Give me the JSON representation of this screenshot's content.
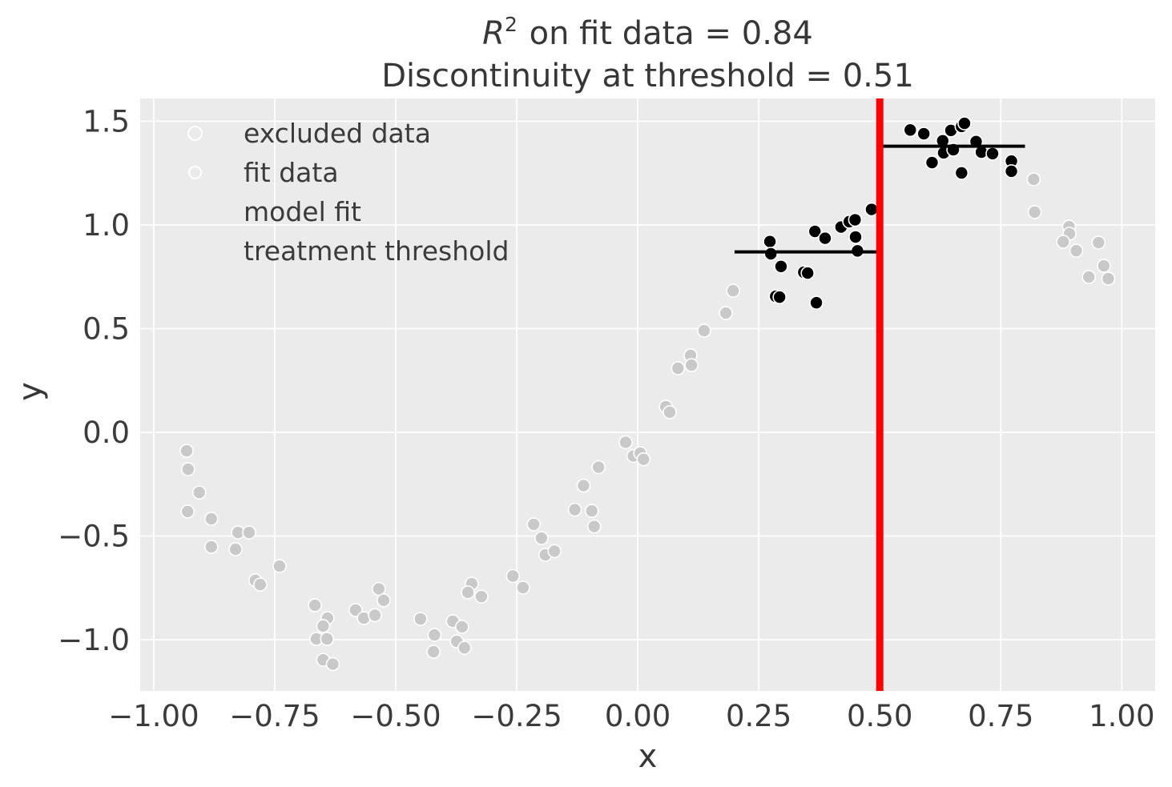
{
  "figure": {
    "title_line1": {
      "r2_base": "R",
      "r2_exp": "2",
      "rest": " on fit data = 0.84"
    },
    "title_line2": "Discontinuity at threshold = 0.51",
    "xlabel": "x",
    "ylabel": "y"
  },
  "legend": {
    "position": "upper left",
    "items": [
      {
        "label": "excluded data",
        "marker": "circle",
        "color": "#C9C9C9"
      },
      {
        "label": "fit data",
        "marker": "circle",
        "color": "#000000"
      },
      {
        "label": "model fit",
        "marker": "line",
        "color": "#000000"
      },
      {
        "label": "treatment threshold",
        "marker": "line",
        "color": "#FF0000"
      }
    ]
  },
  "chart_data": {
    "type": "scatter",
    "title": "R^2 on fit data = 0.84\nDiscontinuity at threshold = 0.51",
    "r_squared_on_fit_data": 0.84,
    "discontinuity_at_threshold": 0.51,
    "threshold_x": 0.5,
    "xlabel": "x",
    "ylabel": "y",
    "xlim": [
      -1.028,
      1.069
    ],
    "ylim": [
      -1.247,
      1.61
    ],
    "x_ticks": [
      -1.0,
      -0.75,
      -0.5,
      -0.25,
      0.0,
      0.25,
      0.5,
      0.75,
      1.0
    ],
    "x_tick_labels": [
      "−1.00",
      "−0.75",
      "−0.50",
      "−0.25",
      "0.00",
      "0.25",
      "0.50",
      "0.75",
      "1.00"
    ],
    "y_ticks": [
      1.5,
      1.0,
      0.5,
      0.0,
      -0.5,
      -1.0
    ],
    "y_tick_labels": [
      "1.5",
      "1.0",
      "0.5",
      "0.0",
      "−0.5",
      "−1.0"
    ],
    "grid": true,
    "colors": {
      "plot_background": "#EBEBEB",
      "gridline": "#FFFFFF",
      "excluded": "#C9C9C9",
      "fit": "#000000",
      "model_fit": "#000000",
      "threshold": "#FF0000",
      "text": "#3B3B3B",
      "marker_edge": "#FFFFFF"
    },
    "series": [
      {
        "name": "excluded data",
        "color": "#C9C9C9",
        "points": [
          [
            -0.932,
            -0.089
          ],
          [
            -0.929,
            -0.178
          ],
          [
            -0.906,
            -0.29
          ],
          [
            -0.93,
            -0.382
          ],
          [
            -0.881,
            -0.417
          ],
          [
            -0.826,
            -0.483
          ],
          [
            -0.803,
            -0.483
          ],
          [
            -0.881,
            -0.552
          ],
          [
            -0.831,
            -0.564
          ],
          [
            -0.74,
            -0.645
          ],
          [
            -0.79,
            -0.714
          ],
          [
            -0.78,
            -0.734
          ],
          [
            -0.667,
            -0.834
          ],
          [
            -0.641,
            -0.896
          ],
          [
            -0.65,
            -0.934
          ],
          [
            -0.664,
            -0.996
          ],
          [
            -0.642,
            -0.996
          ],
          [
            -0.65,
            -1.097
          ],
          [
            -0.63,
            -1.118
          ],
          [
            -0.583,
            -0.857
          ],
          [
            -0.566,
            -0.896
          ],
          [
            -0.543,
            -0.882
          ],
          [
            -0.535,
            -0.755
          ],
          [
            -0.525,
            -0.81
          ],
          [
            -0.449,
            -0.9
          ],
          [
            -0.42,
            -0.977
          ],
          [
            -0.422,
            -1.058
          ],
          [
            -0.382,
            -0.911
          ],
          [
            -0.363,
            -0.938
          ],
          [
            -0.374,
            -1.008
          ],
          [
            -0.358,
            -1.039
          ],
          [
            -0.343,
            -0.73
          ],
          [
            -0.351,
            -0.772
          ],
          [
            -0.323,
            -0.792
          ],
          [
            -0.258,
            -0.693
          ],
          [
            -0.237,
            -0.749
          ],
          [
            -0.215,
            -0.444
          ],
          [
            -0.199,
            -0.51
          ],
          [
            -0.191,
            -0.591
          ],
          [
            -0.172,
            -0.573
          ],
          [
            -0.13,
            -0.373
          ],
          [
            -0.112,
            -0.257
          ],
          [
            -0.095,
            -0.379
          ],
          [
            -0.09,
            -0.454
          ],
          [
            -0.081,
            -0.168
          ],
          [
            -0.025,
            -0.048
          ],
          [
            -0.009,
            -0.114
          ],
          [
            0.005,
            -0.1
          ],
          [
            0.012,
            -0.13
          ],
          [
            0.058,
            0.124
          ],
          [
            0.066,
            0.097
          ],
          [
            0.083,
            0.309
          ],
          [
            0.109,
            0.371
          ],
          [
            0.111,
            0.324
          ],
          [
            0.137,
            0.49
          ],
          [
            0.182,
            0.575
          ],
          [
            0.197,
            0.683
          ],
          [
            0.818,
            1.22
          ],
          [
            0.82,
            1.062
          ],
          [
            0.891,
            0.992
          ],
          [
            0.892,
            0.958
          ],
          [
            0.879,
            0.919
          ],
          [
            0.906,
            0.876
          ],
          [
            0.952,
            0.915
          ],
          [
            0.963,
            0.803
          ],
          [
            0.932,
            0.749
          ],
          [
            0.972,
            0.741
          ]
        ]
      },
      {
        "name": "fit data",
        "color": "#000000",
        "points": [
          [
            0.273,
            0.92
          ],
          [
            0.275,
            0.861
          ],
          [
            0.296,
            0.8
          ],
          [
            0.285,
            0.656
          ],
          [
            0.293,
            0.652
          ],
          [
            0.343,
            0.772
          ],
          [
            0.351,
            0.768
          ],
          [
            0.366,
            0.969
          ],
          [
            0.369,
            0.625
          ],
          [
            0.387,
            0.936
          ],
          [
            0.42,
            0.99
          ],
          [
            0.437,
            1.016
          ],
          [
            0.449,
            1.025
          ],
          [
            0.45,
            0.942
          ],
          [
            0.454,
            0.875
          ],
          [
            0.483,
            1.075
          ],
          [
            0.563,
            1.458
          ],
          [
            0.591,
            1.44
          ],
          [
            0.63,
            1.406
          ],
          [
            0.647,
            1.456
          ],
          [
            0.669,
            1.475
          ],
          [
            0.675,
            1.49
          ],
          [
            0.632,
            1.348
          ],
          [
            0.652,
            1.363
          ],
          [
            0.699,
            1.402
          ],
          [
            0.71,
            1.351
          ],
          [
            0.733,
            1.344
          ],
          [
            0.608,
            1.301
          ],
          [
            0.669,
            1.251
          ],
          [
            0.772,
            1.308
          ],
          [
            0.772,
            1.259
          ]
        ]
      }
    ],
    "model_fit_segments": [
      {
        "x_start": 0.2,
        "x_end": 0.5,
        "y": 0.87
      },
      {
        "x_start": 0.5,
        "x_end": 0.8,
        "y": 1.38
      }
    ]
  }
}
